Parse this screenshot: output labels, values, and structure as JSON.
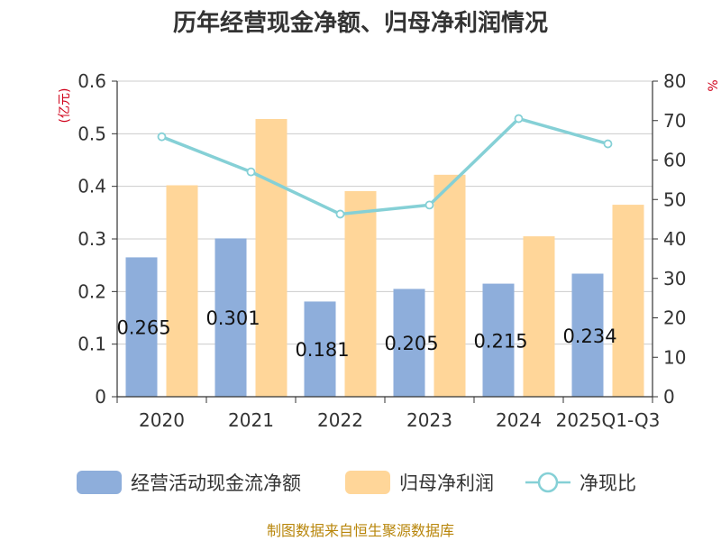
{
  "chart_data": {
    "type": "bar",
    "title": "历年经营现金净额、归母净利润情况",
    "categories": [
      "2020",
      "2021",
      "2022",
      "2023",
      "2024",
      "2025Q1-Q3"
    ],
    "series": [
      {
        "name": "经营活动现金流净额",
        "axis": "left",
        "type": "bar",
        "color": "#8eaedb",
        "values": [
          0.265,
          0.301,
          0.181,
          0.205,
          0.215,
          0.234
        ],
        "data_labels": [
          "0.265",
          "0.301",
          "0.181",
          "0.205",
          "0.215",
          "0.234"
        ]
      },
      {
        "name": "归母净利润",
        "axis": "left",
        "type": "bar",
        "color": "#ffd699",
        "values": [
          0.402,
          0.528,
          0.391,
          0.422,
          0.305,
          0.365
        ]
      },
      {
        "name": "净现比",
        "axis": "right",
        "type": "line",
        "color": "#85d0d6",
        "values": [
          65.9,
          57.0,
          46.3,
          48.6,
          70.5,
          64.1
        ]
      }
    ],
    "ylabel_left": "(亿元)",
    "ylabel_right": "%",
    "ylim_left": [
      0,
      0.6
    ],
    "yticks_left": [
      "0",
      "0.1",
      "0.2",
      "0.3",
      "0.4",
      "0.5",
      "0.6"
    ],
    "ylim_right": [
      0,
      80
    ],
    "yticks_right": [
      "0",
      "10",
      "20",
      "30",
      "40",
      "50",
      "60",
      "70",
      "80"
    ],
    "grid": true,
    "legend_position": "bottom"
  },
  "source_text": "制图数据来自恒生聚源数据库"
}
